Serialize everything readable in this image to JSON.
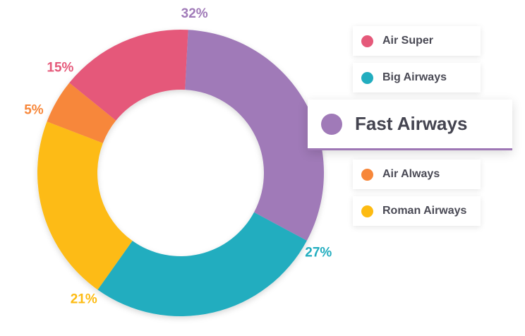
{
  "chart_data": {
    "type": "pie",
    "title": "",
    "categories": [
      "Air Super",
      "Big Airways",
      "Fast Airways",
      "Air Always",
      "Roman Airways"
    ],
    "values": [
      15,
      27,
      32,
      5,
      21
    ],
    "percent_labels": [
      "15%",
      "27%",
      "32%",
      "5%",
      "21%"
    ],
    "colors": [
      "#e5597a",
      "#22adbf",
      "#a07ab8",
      "#f7873a",
      "#fdbb12"
    ],
    "highlighted": "Fast Airways",
    "donut": true,
    "legend_position": "right"
  },
  "legend": {
    "items": [
      {
        "label": "Air Super",
        "color": "#e5597a"
      },
      {
        "label": "Big Airways",
        "color": "#22adbf"
      },
      {
        "label": "Fast Airways",
        "color": "#a07ab8"
      },
      {
        "label": "Air Always",
        "color": "#f7873a"
      },
      {
        "label": "Roman Airways",
        "color": "#fdbb12"
      }
    ]
  }
}
